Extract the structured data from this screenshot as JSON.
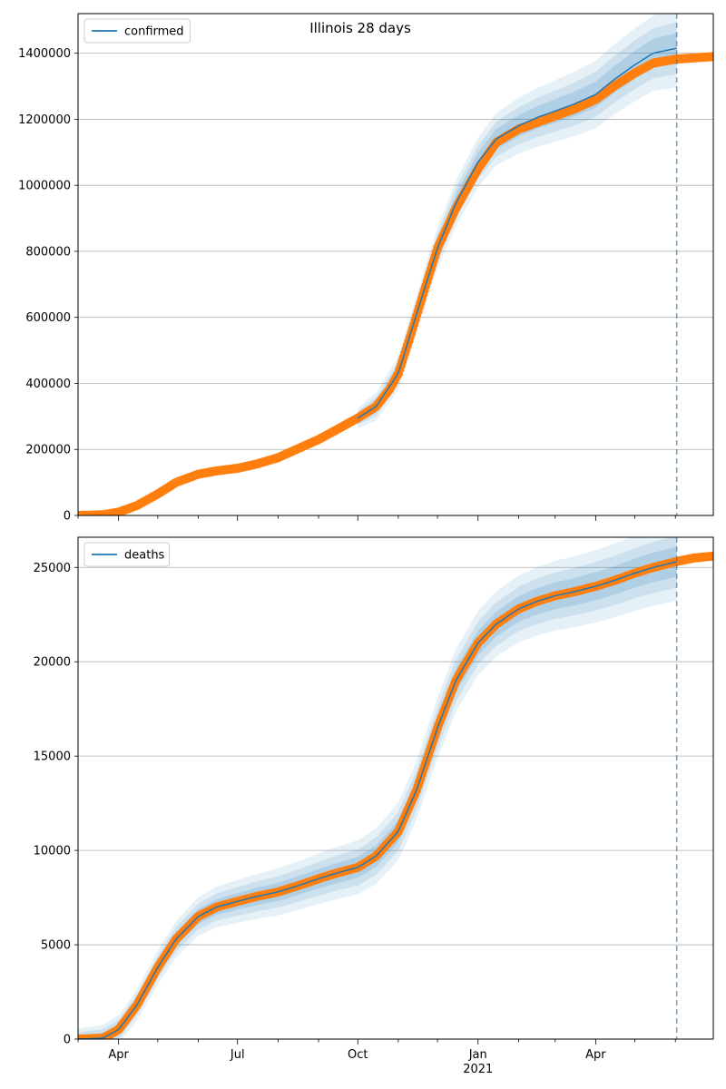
{
  "title": "Illinois 28 days",
  "colors": {
    "model": "#1f77b4",
    "observed": "#ff7f0e",
    "grid": "#b0b0b0",
    "band": "#1f77b4"
  },
  "chart_data": [
    {
      "type": "line",
      "name": "confirmed-panel",
      "legend": "confirmed",
      "legend_position": "upper-left",
      "grid": "y",
      "xlim": [
        "2020-03-01",
        "2021-06-30"
      ],
      "ylim": [
        0,
        1520000
      ],
      "yticks": [
        0,
        200000,
        400000,
        600000,
        800000,
        1000000,
        1200000,
        1400000
      ],
      "ytick_labels": [
        "0",
        "200000",
        "400000",
        "600000",
        "800000",
        "1000000",
        "1200000",
        "1400000"
      ],
      "forecast_date": "2021-06-02",
      "observed": {
        "x": [
          "2020-03-01",
          "2020-03-20",
          "2020-04-01",
          "2020-04-15",
          "2020-05-01",
          "2020-05-15",
          "2020-06-01",
          "2020-06-15",
          "2020-07-01",
          "2020-07-15",
          "2020-08-01",
          "2020-08-15",
          "2020-09-01",
          "2020-09-15",
          "2020-10-01",
          "2020-10-15",
          "2020-10-25",
          "2020-11-01",
          "2020-11-10",
          "2020-11-20",
          "2020-12-01",
          "2020-12-15",
          "2021-01-01",
          "2021-01-15",
          "2021-02-01",
          "2021-02-15",
          "2021-03-01",
          "2021-03-15",
          "2021-04-01",
          "2021-04-15",
          "2021-05-01",
          "2021-05-15",
          "2021-06-01",
          "2021-06-15",
          "2021-06-30"
        ],
        "y": [
          0,
          2000,
          10000,
          30000,
          65000,
          100000,
          125000,
          135000,
          143000,
          155000,
          175000,
          200000,
          230000,
          260000,
          295000,
          330000,
          380000,
          430000,
          540000,
          670000,
          810000,
          930000,
          1050000,
          1130000,
          1170000,
          1190000,
          1210000,
          1230000,
          1260000,
          1300000,
          1340000,
          1370000,
          1382000,
          1386000,
          1390000
        ]
      },
      "model": {
        "x": [
          "2020-10-01",
          "2020-10-15",
          "2020-11-01",
          "2020-11-15",
          "2020-12-01",
          "2020-12-15",
          "2021-01-01",
          "2021-01-15",
          "2021-02-01",
          "2021-02-15",
          "2021-03-01",
          "2021-03-15",
          "2021-04-01",
          "2021-04-15",
          "2021-05-01",
          "2021-05-15",
          "2021-06-02"
        ],
        "y": [
          295000,
          330000,
          430000,
          610000,
          810000,
          945000,
          1070000,
          1140000,
          1180000,
          1205000,
          1225000,
          1245000,
          1275000,
          1320000,
          1365000,
          1400000,
          1415000
        ]
      }
    },
    {
      "type": "line",
      "name": "deaths-panel",
      "legend": "deaths",
      "legend_position": "upper-left",
      "grid": "y",
      "xlim": [
        "2020-03-01",
        "2021-06-30"
      ],
      "ylim": [
        0,
        26600
      ],
      "yticks": [
        0,
        5000,
        10000,
        15000,
        20000,
        25000
      ],
      "ytick_labels": [
        "0",
        "5000",
        "10000",
        "15000",
        "20000",
        "25000"
      ],
      "xtick_labels": [
        "Apr",
        "Jul",
        "Oct",
        "Jan",
        "Apr"
      ],
      "xtick_dates": [
        "2020-04-01",
        "2020-07-01",
        "2020-10-01",
        "2021-01-01",
        "2021-04-01"
      ],
      "year_label": "2021",
      "forecast_date": "2021-06-02",
      "observed": {
        "x": [
          "2020-03-01",
          "2020-03-20",
          "2020-04-01",
          "2020-04-15",
          "2020-05-01",
          "2020-05-15",
          "2020-06-01",
          "2020-06-15",
          "2020-07-01",
          "2020-07-15",
          "2020-08-01",
          "2020-08-15",
          "2020-09-01",
          "2020-09-15",
          "2020-10-01",
          "2020-10-15",
          "2020-11-01",
          "2020-11-15",
          "2020-12-01",
          "2020-12-15",
          "2021-01-01",
          "2021-01-15",
          "2021-02-01",
          "2021-02-15",
          "2021-03-01",
          "2021-03-15",
          "2021-04-01",
          "2021-04-15",
          "2021-05-01",
          "2021-05-15",
          "2021-06-01",
          "2021-06-15",
          "2021-06-30"
        ],
        "y": [
          0,
          50,
          500,
          1800,
          3800,
          5300,
          6500,
          7000,
          7300,
          7550,
          7800,
          8100,
          8500,
          8800,
          9100,
          9700,
          11000,
          13200,
          16500,
          19000,
          21000,
          22000,
          22800,
          23200,
          23500,
          23700,
          24000,
          24300,
          24700,
          25000,
          25300,
          25500,
          25600
        ]
      },
      "model": {
        "x": [
          "2020-03-01",
          "2020-03-20",
          "2020-04-01",
          "2020-04-15",
          "2020-05-01",
          "2020-05-15",
          "2020-06-01",
          "2020-06-15",
          "2020-07-01",
          "2020-07-15",
          "2020-08-01",
          "2020-08-15",
          "2020-09-01",
          "2020-09-15",
          "2020-10-01",
          "2020-10-15",
          "2020-11-01",
          "2020-11-15",
          "2020-12-01",
          "2020-12-15",
          "2021-01-01",
          "2021-01-15",
          "2021-02-01",
          "2021-02-15",
          "2021-03-01",
          "2021-03-15",
          "2021-04-01",
          "2021-04-15",
          "2021-05-01",
          "2021-05-15",
          "2021-06-02"
        ],
        "y": [
          0,
          50,
          500,
          1800,
          3800,
          5300,
          6500,
          7000,
          7300,
          7550,
          7800,
          8100,
          8500,
          8800,
          9100,
          9700,
          11000,
          13200,
          16500,
          19000,
          21000,
          22000,
          22800,
          23200,
          23500,
          23700,
          24000,
          24300,
          24700,
          25000,
          25300
        ]
      }
    }
  ]
}
